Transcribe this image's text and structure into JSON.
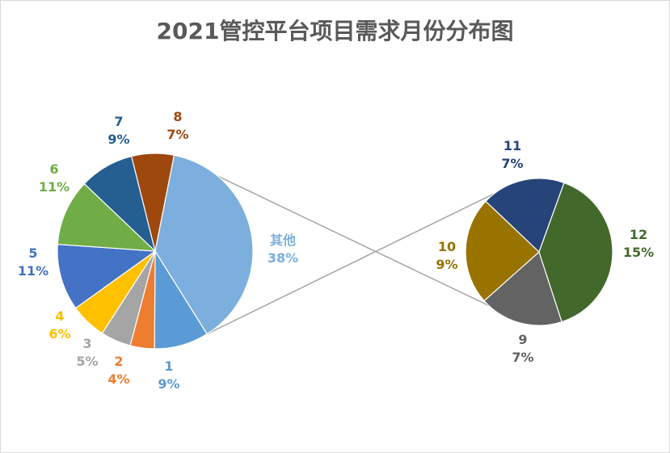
{
  "chart_data": {
    "type": "pie",
    "subtype": "pie-of-pie",
    "title": "2021管控平台项目需求月份分布图",
    "slices": [
      {
        "category": "1",
        "value": 9,
        "label": "9%",
        "color": "#5b9bd5"
      },
      {
        "category": "2",
        "value": 4,
        "label": "4%",
        "color": "#ed7d31"
      },
      {
        "category": "3",
        "value": 5,
        "label": "5%",
        "color": "#a5a5a5"
      },
      {
        "category": "4",
        "value": 6,
        "label": "6%",
        "color": "#ffc000"
      },
      {
        "category": "5",
        "value": 11,
        "label": "11%",
        "color": "#4472c4"
      },
      {
        "category": "6",
        "value": 11,
        "label": "11%",
        "color": "#70ad47"
      },
      {
        "category": "7",
        "value": 9,
        "label": "9%",
        "color": "#255e91"
      },
      {
        "category": "8",
        "value": 7,
        "label": "7%",
        "color": "#9e480e"
      },
      {
        "category": "其他",
        "value": 38,
        "label": "38%",
        "color": "#7cafdd"
      }
    ],
    "secondary_slices": [
      {
        "category": "9",
        "value": 7,
        "label": "7%",
        "color": "#636363"
      },
      {
        "category": "10",
        "value": 9,
        "label": "9%",
        "color": "#997300"
      },
      {
        "category": "11",
        "value": 7,
        "label": "7%",
        "color": "#264478"
      },
      {
        "category": "12",
        "value": 15,
        "label": "15%",
        "color": "#43682b"
      }
    ],
    "legend": "none"
  }
}
